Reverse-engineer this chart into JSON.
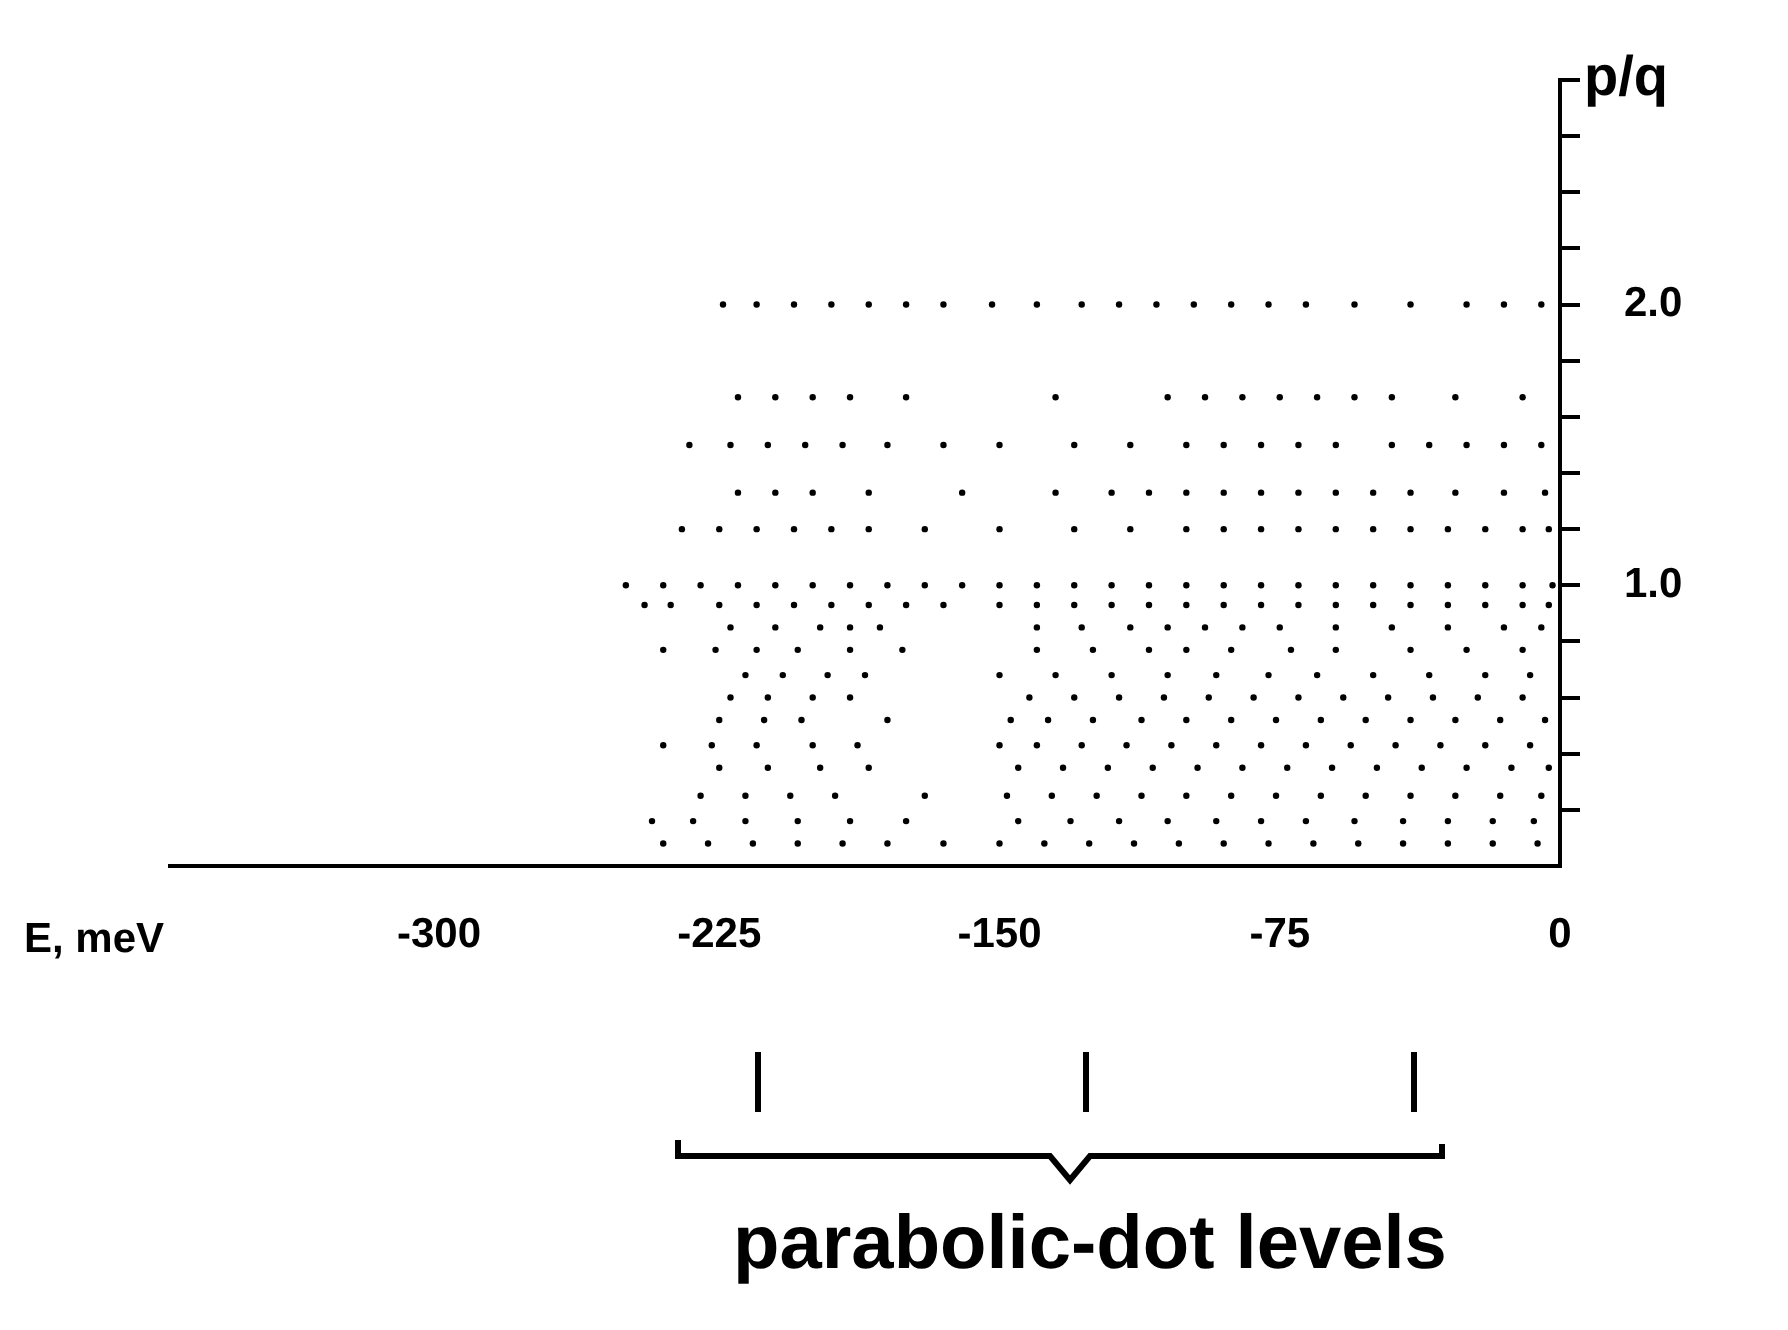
{
  "chart_data": {
    "type": "scatter",
    "xlabel": "E, meV",
    "ylabel": "p/q",
    "annotations": [
      "parabolic-dot levels"
    ],
    "legend": false,
    "grid": false,
    "marker": "circle",
    "xlim": [
      -372,
      0
    ],
    "xticks": [
      -300,
      -225,
      -150,
      -75,
      0
    ],
    "ylim": [
      0,
      2.8
    ],
    "yticks": [
      {
        "value": 0.2,
        "label": null
      },
      {
        "value": 0.4,
        "label": null
      },
      {
        "value": 0.6,
        "label": null
      },
      {
        "value": 0.8,
        "label": null
      },
      {
        "value": 1,
        "label": "1.0"
      },
      {
        "value": 1.2,
        "label": null
      },
      {
        "value": 1.4,
        "label": null
      },
      {
        "value": 1.6,
        "label": null
      },
      {
        "value": 1.8,
        "label": null
      },
      {
        "value": 2,
        "label": "2.0"
      },
      {
        "value": 2.2,
        "label": null
      },
      {
        "value": 2.4,
        "label": null
      },
      {
        "value": 2.6,
        "label": null
      },
      {
        "value": 2.8,
        "label": null
      }
    ],
    "series": [
      {
        "color": "#000000",
        "x": [
          -224,
          -215,
          -205,
          -195,
          -185,
          -175,
          -165,
          -152,
          -140,
          -128,
          -118,
          -108,
          -98,
          -88,
          -78,
          -68,
          -55,
          -40,
          -25,
          -15,
          -5
        ],
        "values": [
          2,
          2,
          2,
          2,
          2,
          2,
          2,
          2,
          2,
          2,
          2,
          2,
          2,
          2,
          2,
          2,
          2,
          2,
          2,
          2,
          2
        ]
      },
      {
        "color": "#000000",
        "x": [
          -220,
          -210,
          -200,
          -190,
          -175,
          -135,
          -105,
          -95,
          -85,
          -75,
          -65,
          -55,
          -45,
          -28,
          -10
        ],
        "values": [
          1.67,
          1.67,
          1.67,
          1.67,
          1.67,
          1.67,
          1.67,
          1.67,
          1.67,
          1.67,
          1.67,
          1.67,
          1.67,
          1.67,
          1.67
        ]
      },
      {
        "color": "#000000",
        "x": [
          -233,
          -222,
          -212,
          -202,
          -192,
          -180,
          -165,
          -150,
          -130,
          -115,
          -100,
          -90,
          -80,
          -70,
          -60,
          -45,
          -35,
          -25,
          -15,
          -5
        ],
        "values": [
          1.5,
          1.5,
          1.5,
          1.5,
          1.5,
          1.5,
          1.5,
          1.5,
          1.5,
          1.5,
          1.5,
          1.5,
          1.5,
          1.5,
          1.5,
          1.5,
          1.5,
          1.5,
          1.5,
          1.5
        ]
      },
      {
        "color": "#000000",
        "x": [
          -220,
          -210,
          -200,
          -185,
          -160,
          -135,
          -120,
          -110,
          -100,
          -90,
          -80,
          -70,
          -60,
          -50,
          -40,
          -28,
          -15,
          -4
        ],
        "values": [
          1.33,
          1.33,
          1.33,
          1.33,
          1.33,
          1.33,
          1.33,
          1.33,
          1.33,
          1.33,
          1.33,
          1.33,
          1.33,
          1.33,
          1.33,
          1.33,
          1.33,
          1.33
        ]
      },
      {
        "color": "#000000",
        "x": [
          -235,
          -225,
          -215,
          -205,
          -195,
          -185,
          -170,
          -150,
          -130,
          -115,
          -100,
          -90,
          -80,
          -70,
          -60,
          -50,
          -40,
          -30,
          -20,
          -10,
          -3
        ],
        "values": [
          1.2,
          1.2,
          1.2,
          1.2,
          1.2,
          1.2,
          1.2,
          1.2,
          1.2,
          1.2,
          1.2,
          1.2,
          1.2,
          1.2,
          1.2,
          1.2,
          1.2,
          1.2,
          1.2,
          1.2,
          1.2
        ]
      },
      {
        "color": "#000000",
        "x": [
          -250,
          -240,
          -230,
          -220,
          -210,
          -200,
          -190,
          -180,
          -170,
          -160,
          -150,
          -140,
          -130,
          -120,
          -110,
          -100,
          -90,
          -80,
          -70,
          -60,
          -50,
          -40,
          -30,
          -20,
          -10,
          -2
        ],
        "values": [
          1,
          1,
          1,
          1,
          1,
          1,
          1,
          1,
          1,
          1,
          1,
          1,
          1,
          1,
          1,
          1,
          1,
          1,
          1,
          1,
          1,
          1,
          1,
          1,
          1,
          1
        ]
      },
      {
        "color": "#000000",
        "x": [
          -245,
          -238,
          -225,
          -215,
          -205,
          -195,
          -185,
          -175,
          -165,
          -150,
          -140,
          -130,
          -120,
          -110,
          -100,
          -90,
          -80,
          -70,
          -60,
          -50,
          -40,
          -30,
          -20,
          -10,
          -3
        ],
        "values": [
          0.93,
          0.93,
          0.93,
          0.93,
          0.93,
          0.93,
          0.93,
          0.93,
          0.93,
          0.93,
          0.93,
          0.93,
          0.93,
          0.93,
          0.93,
          0.93,
          0.93,
          0.93,
          0.93,
          0.93,
          0.93,
          0.93,
          0.93,
          0.93,
          0.93
        ]
      },
      {
        "color": "#000000",
        "x": [
          -222,
          -210,
          -198,
          -190,
          -182,
          -140,
          -128,
          -115,
          -105,
          -95,
          -85,
          -75,
          -60,
          -45,
          -30,
          -15,
          -5
        ],
        "values": [
          0.85,
          0.85,
          0.85,
          0.85,
          0.85,
          0.85,
          0.85,
          0.85,
          0.85,
          0.85,
          0.85,
          0.85,
          0.85,
          0.85,
          0.85,
          0.85,
          0.85
        ]
      },
      {
        "color": "#000000",
        "x": [
          -240,
          -226,
          -215,
          -204,
          -190,
          -176,
          -140,
          -125,
          -110,
          -100,
          -88,
          -72,
          -60,
          -40,
          -25,
          -10
        ],
        "values": [
          0.77,
          0.77,
          0.77,
          0.77,
          0.77,
          0.77,
          0.77,
          0.77,
          0.77,
          0.77,
          0.77,
          0.77,
          0.77,
          0.77,
          0.77,
          0.77
        ]
      },
      {
        "color": "#000000",
        "x": [
          -218,
          -208,
          -196,
          -186,
          -150,
          -135,
          -120,
          -105,
          -92,
          -78,
          -65,
          -50,
          -35,
          -20,
          -8
        ],
        "values": [
          0.68,
          0.68,
          0.68,
          0.68,
          0.68,
          0.68,
          0.68,
          0.68,
          0.68,
          0.68,
          0.68,
          0.68,
          0.68,
          0.68,
          0.68
        ]
      },
      {
        "color": "#000000",
        "x": [
          -222,
          -212,
          -200,
          -190,
          -142,
          -130,
          -118,
          -106,
          -94,
          -82,
          -70,
          -58,
          -46,
          -34,
          -22,
          -10
        ],
        "values": [
          0.6,
          0.6,
          0.6,
          0.6,
          0.6,
          0.6,
          0.6,
          0.6,
          0.6,
          0.6,
          0.6,
          0.6,
          0.6,
          0.6,
          0.6,
          0.6
        ]
      },
      {
        "color": "#000000",
        "x": [
          -225,
          -213,
          -203,
          -180,
          -147,
          -137,
          -125,
          -112,
          -100,
          -88,
          -76,
          -64,
          -52,
          -40,
          -28,
          -16,
          -4
        ],
        "values": [
          0.52,
          0.52,
          0.52,
          0.52,
          0.52,
          0.52,
          0.52,
          0.52,
          0.52,
          0.52,
          0.52,
          0.52,
          0.52,
          0.52,
          0.52,
          0.52,
          0.52
        ]
      },
      {
        "color": "#000000",
        "x": [
          -240,
          -227,
          -215,
          -200,
          -188,
          -150,
          -140,
          -128,
          -116,
          -104,
          -92,
          -80,
          -68,
          -56,
          -44,
          -32,
          -20,
          -8
        ],
        "values": [
          0.43,
          0.43,
          0.43,
          0.43,
          0.43,
          0.43,
          0.43,
          0.43,
          0.43,
          0.43,
          0.43,
          0.43,
          0.43,
          0.43,
          0.43,
          0.43,
          0.43,
          0.43
        ]
      },
      {
        "color": "#000000",
        "x": [
          -225,
          -212,
          -198,
          -185,
          -145,
          -133,
          -121,
          -109,
          -97,
          -85,
          -73,
          -61,
          -49,
          -37,
          -25,
          -13,
          -3
        ],
        "values": [
          0.35,
          0.35,
          0.35,
          0.35,
          0.35,
          0.35,
          0.35,
          0.35,
          0.35,
          0.35,
          0.35,
          0.35,
          0.35,
          0.35,
          0.35,
          0.35,
          0.35
        ]
      },
      {
        "color": "#000000",
        "x": [
          -230,
          -218,
          -206,
          -194,
          -170,
          -148,
          -136,
          -124,
          -112,
          -100,
          -88,
          -76,
          -64,
          -52,
          -40,
          -28,
          -16,
          -5
        ],
        "values": [
          0.25,
          0.25,
          0.25,
          0.25,
          0.25,
          0.25,
          0.25,
          0.25,
          0.25,
          0.25,
          0.25,
          0.25,
          0.25,
          0.25,
          0.25,
          0.25,
          0.25,
          0.25
        ]
      },
      {
        "color": "#000000",
        "x": [
          -243,
          -232,
          -218,
          -204,
          -190,
          -175,
          -145,
          -131,
          -118,
          -105,
          -92,
          -80,
          -68,
          -55,
          -42,
          -30,
          -18,
          -7
        ],
        "values": [
          0.16,
          0.16,
          0.16,
          0.16,
          0.16,
          0.16,
          0.16,
          0.16,
          0.16,
          0.16,
          0.16,
          0.16,
          0.16,
          0.16,
          0.16,
          0.16,
          0.16,
          0.16
        ]
      },
      {
        "color": "#000000",
        "x": [
          -240,
          -228,
          -216,
          -204,
          -192,
          -180,
          -165,
          -150,
          -138,
          -126,
          -114,
          -102,
          -90,
          -78,
          -66,
          -54,
          -42,
          -30,
          -18,
          -6
        ],
        "values": [
          0.08,
          0.08,
          0.08,
          0.08,
          0.08,
          0.08,
          0.08,
          0.08,
          0.08,
          0.08,
          0.08,
          0.08,
          0.08,
          0.08,
          0.08,
          0.08,
          0.08,
          0.08,
          0.08,
          0.08
        ]
      }
    ]
  }
}
